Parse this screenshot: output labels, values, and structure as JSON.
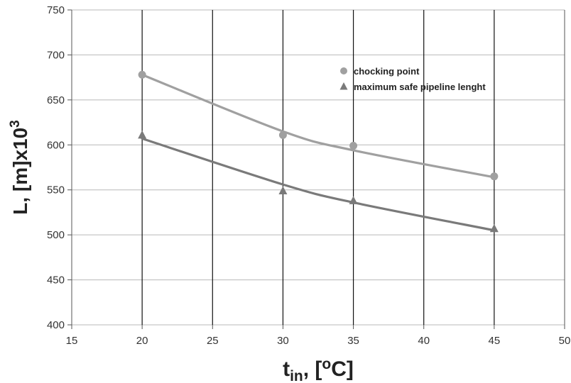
{
  "chart_data": {
    "type": "scatter",
    "xlabel": {
      "base": "t",
      "sub": "in",
      "rest": ", [",
      "sup": "o",
      "end": "C]"
    },
    "ylabel": {
      "base": "L, [m]x10",
      "sup": "3"
    },
    "xlim": [
      15,
      50
    ],
    "ylim": [
      400,
      750
    ],
    "xticks": [
      "15",
      "20",
      "25",
      "30",
      "35",
      "40",
      "45",
      "50"
    ],
    "yticks": [
      "400",
      "450",
      "500",
      "550",
      "600",
      "650",
      "700",
      "750"
    ],
    "grid": true,
    "legend_position": "top-right",
    "series": [
      {
        "name": "chocking point",
        "marker": "circle",
        "color": "#a0a0a0",
        "x": [
          20,
          30,
          35,
          45
        ],
        "y": [
          678,
          611,
          599,
          565
        ],
        "trend_y": [
          678,
          615,
          594,
          564
        ]
      },
      {
        "name": "maximum safe pipeline lenght",
        "marker": "triangle",
        "color": "#7a7a7a",
        "x": [
          20,
          30,
          35,
          45
        ],
        "y": [
          611,
          549,
          538,
          507
        ],
        "trend_y": [
          607,
          556,
          536,
          505
        ]
      }
    ]
  }
}
